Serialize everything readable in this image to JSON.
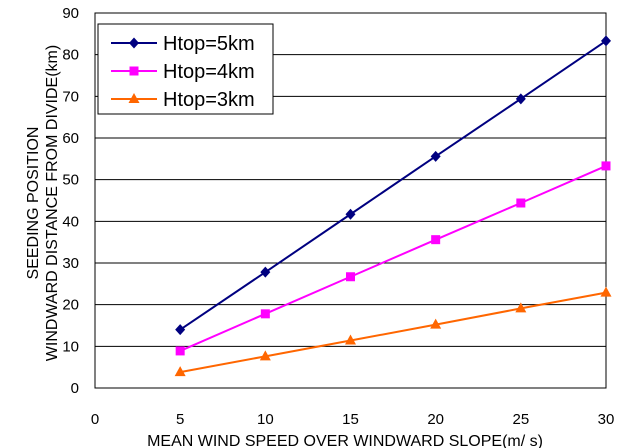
{
  "chart_data": {
    "type": "line",
    "x": [
      5,
      10,
      15,
      20,
      25,
      30
    ],
    "xlim": [
      0,
      30
    ],
    "ylim": [
      0,
      90
    ],
    "x_ticks": [
      "0",
      "5",
      "10",
      "15",
      "20",
      "25",
      "30"
    ],
    "y_ticks": [
      "0",
      "10",
      "20",
      "30",
      "40",
      "50",
      "60",
      "70",
      "80",
      "90"
    ],
    "xlabel": "MEAN WIND SPEED OVER WINDWARD SLOPE(m/ s)",
    "ylabel_line1": "SEEDING POSITION",
    "ylabel_line2": "WINDWARD DISTANCE FROM DIVIDE(km)",
    "grid": "horizontal",
    "legend_position": "top-left",
    "series": [
      {
        "name": "Htop=5km",
        "marker": "diamond",
        "color": "#000080",
        "values": [
          14,
          27.8,
          41.7,
          55.6,
          69.4,
          83.3
        ]
      },
      {
        "name": "Htop=4km",
        "marker": "square",
        "color": "#ff00ff",
        "values": [
          8.9,
          17.8,
          26.7,
          35.6,
          44.4,
          53.3
        ]
      },
      {
        "name": "Htop=3km",
        "marker": "triangle",
        "color": "#ff6600",
        "values": [
          3.8,
          7.6,
          11.4,
          15.2,
          19.1,
          22.9
        ]
      }
    ]
  }
}
